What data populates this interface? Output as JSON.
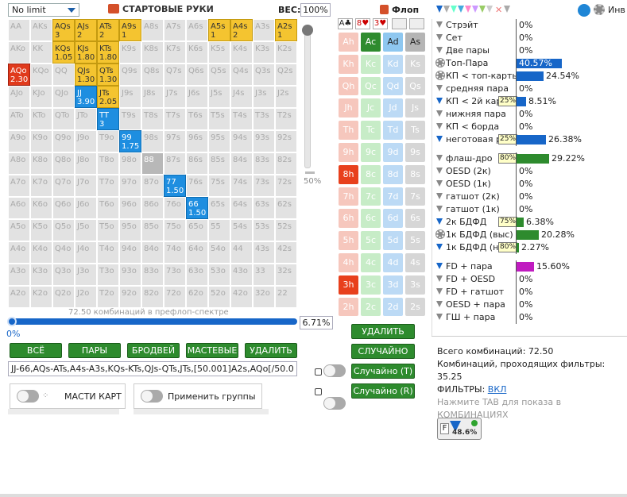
{
  "header": {
    "limit_select": "No limit",
    "hands_title": "СТАРТОВЫЕ РУКИ",
    "weight_label": "ВЕС:",
    "weight_value": "100%"
  },
  "grid": {
    "cells": [
      [
        "AA",
        "AKs",
        "AQs\n3",
        "AJs\n2",
        "ATs\n2",
        "A9s\n1",
        "A8s",
        "A7s",
        "A6s",
        "A5s\n1",
        "A4s\n2",
        "A3s",
        "A2s\n1"
      ],
      [
        "AKo",
        "KK",
        "KQs\n1.05",
        "KJs\n1.80",
        "KTs\n1.80",
        "K9s",
        "K8s",
        "K7s",
        "K6s",
        "K5s",
        "K4s",
        "K3s",
        "K2s"
      ],
      [
        "AQo\n2.30",
        "KQo",
        "QQ",
        "QJs\n1.30",
        "QTs\n1.30",
        "Q9s",
        "Q8s",
        "Q7s",
        "Q6s",
        "Q5s",
        "Q4s",
        "Q3s",
        "Q2s"
      ],
      [
        "AJo",
        "KJo",
        "QJo",
        "JJ\n3.90",
        "JTs\n2.05",
        "J9s",
        "J8s",
        "J7s",
        "J6s",
        "J5s",
        "J4s",
        "J3s",
        "J2s"
      ],
      [
        "ATo",
        "KTo",
        "QTo",
        "JTo",
        "TT\n3",
        "T9s",
        "T8s",
        "T7s",
        "T6s",
        "T5s",
        "T4s",
        "T3s",
        "T2s"
      ],
      [
        "A9o",
        "K9o",
        "Q9o",
        "J9o",
        "T9o",
        "99\n1.75",
        "98s",
        "97s",
        "96s",
        "95s",
        "94s",
        "93s",
        "92s"
      ],
      [
        "A8o",
        "K8o",
        "Q8o",
        "J8o",
        "T8o",
        "98o",
        "88",
        "87s",
        "86s",
        "85s",
        "84s",
        "83s",
        "82s"
      ],
      [
        "A7o",
        "K7o",
        "Q7o",
        "J7o",
        "T7o",
        "97o",
        "87o",
        "77\n1.50",
        "76s",
        "75s",
        "74s",
        "73s",
        "72s"
      ],
      [
        "A6o",
        "K6o",
        "Q6o",
        "J6o",
        "T6o",
        "96o",
        "86o",
        "76o",
        "66\n1.50",
        "65s",
        "64s",
        "63s",
        "62s"
      ],
      [
        "A5o",
        "K5o",
        "Q5o",
        "J5o",
        "T5o",
        "95o",
        "85o",
        "75o",
        "65o",
        "55",
        "54s",
        "53s",
        "52s"
      ],
      [
        "A4o",
        "K4o",
        "Q4o",
        "J4o",
        "T4o",
        "94o",
        "84o",
        "74o",
        "64o",
        "54o",
        "44",
        "43s",
        "42s"
      ],
      [
        "A3o",
        "K3o",
        "Q3o",
        "J3o",
        "T3o",
        "93o",
        "83o",
        "73o",
        "63o",
        "53o",
        "43o",
        "33",
        "32s"
      ],
      [
        "A2o",
        "K2o",
        "Q2o",
        "J2o",
        "T2o",
        "92o",
        "82o",
        "72o",
        "62o",
        "52o",
        "42o",
        "32o",
        "22"
      ]
    ],
    "colors": [
      [
        "",
        "",
        "y",
        "y",
        "y",
        "y",
        "",
        "",
        "",
        "y",
        "y",
        "",
        "y"
      ],
      [
        "",
        "",
        "y",
        "y",
        "y",
        "",
        "",
        "",
        "",
        "",
        "",
        "",
        ""
      ],
      [
        "r",
        "",
        "",
        "y",
        "y",
        "",
        "",
        "",
        "",
        "",
        "",
        "",
        ""
      ],
      [
        "",
        "",
        "",
        "b",
        "y",
        "",
        "",
        "",
        "",
        "",
        "",
        "",
        ""
      ],
      [
        "",
        "",
        "",
        "",
        "b",
        "",
        "",
        "",
        "",
        "",
        "",
        "",
        ""
      ],
      [
        "",
        "",
        "",
        "",
        "",
        "b",
        "",
        "",
        "",
        "",
        "",
        "",
        ""
      ],
      [
        "",
        "",
        "",
        "",
        "",
        "",
        "g",
        "",
        "",
        "",
        "",
        "",
        ""
      ],
      [
        "",
        "",
        "",
        "",
        "",
        "",
        "",
        "b",
        "",
        "",
        "",
        "",
        ""
      ],
      [
        "",
        "",
        "",
        "",
        "",
        "",
        "",
        "",
        "b",
        "",
        "",
        "",
        ""
      ],
      [
        "",
        "",
        "",
        "",
        "",
        "",
        "",
        "",
        "",
        "",
        "",
        "",
        ""
      ],
      [
        "",
        "",
        "",
        "",
        "",
        "",
        "",
        "",
        "",
        "",
        "",
        "",
        ""
      ],
      [
        "",
        "",
        "",
        "",
        "",
        "",
        "",
        "",
        "",
        "",
        "",
        "",
        ""
      ],
      [
        "",
        "",
        "",
        "",
        "",
        "",
        "",
        "",
        "",
        "",
        "",
        "",
        ""
      ]
    ]
  },
  "slider": {
    "vertical_pct": "50%",
    "spectrum_text": "72.50 комбинаций в префлоп-спектре",
    "horizontal_pct": "6.71%",
    "zero": "0%"
  },
  "buttons": {
    "all": "ВСЁ",
    "pairs": "ПАРЫ",
    "broadway": "БРОДВЕЙ",
    "suited": "МАСТЕВЫЕ",
    "delete": "УДАЛИТЬ"
  },
  "range_text": "JJ-66,AQs-ATs,A4s-A3s,KQs-KTs,QJs-QTs,JTs,[50.001]A2s,AQo[/50.0",
  "options": {
    "suits": "МАСТИ КАРТ",
    "groups": "Применить группы"
  },
  "flop": {
    "title": "Флоп",
    "slots": [
      "A♣",
      "8♥",
      "3♥",
      "",
      ""
    ],
    "ranks": [
      "A",
      "K",
      "Q",
      "J",
      "T",
      "9",
      "8",
      "7",
      "6",
      "5",
      "4",
      "3",
      "2"
    ],
    "suits": [
      "h",
      "c",
      "d",
      "s"
    ]
  },
  "board_buttons": {
    "delete": "УДАЛИТЬ",
    "random": "СЛУЧАЙНО",
    "random_t": "Случайно (T)",
    "random_r": "Случайно (R)"
  },
  "filters": {
    "top_label": "Инв",
    "rows": [
      {
        "icon": "funnel",
        "label": "Стрэйт",
        "value": "0%"
      },
      {
        "icon": "funnel",
        "label": "Сет",
        "value": "0%"
      },
      {
        "icon": "funnel",
        "label": "Две пары",
        "value": "0%"
      },
      {
        "icon": "gear",
        "label": "Топ-Пара",
        "value": "40.57%",
        "bar": 0.4057,
        "color": "#1766c8",
        "inbar": true
      },
      {
        "icon": "gear",
        "label": "КП < топ-карты",
        "value": "24.54%",
        "bar": 0.2454,
        "color": "#1766c8"
      },
      {
        "icon": "funnel",
        "label": "средняя пара",
        "value": "0%"
      },
      {
        "icon": "funnel-blue",
        "label": "КП < 2й карты",
        "tag": "25%",
        "value": "8.51%",
        "bar": 0.0851,
        "color": "#1766c8"
      },
      {
        "icon": "funnel",
        "label": "нижняя пара",
        "value": "0%"
      },
      {
        "icon": "funnel",
        "label": "КП < борда",
        "value": "0%"
      },
      {
        "icon": "funnel-blue",
        "label": "неготовая рука",
        "tag": "25%",
        "value": "26.38%",
        "bar": 0.2638,
        "color": "#1766c8"
      },
      {
        "gap": true
      },
      {
        "icon": "funnel",
        "label": "флаш-дро",
        "tag": "80%",
        "value": "29.22%",
        "bar": 0.2922,
        "color": "#2e8b2e"
      },
      {
        "icon": "funnel",
        "label": "OESD (2к)",
        "value": "0%"
      },
      {
        "icon": "funnel",
        "label": "OESD (1к)",
        "value": "0%"
      },
      {
        "icon": "funnel",
        "label": "гатшот (2к)",
        "value": "0%"
      },
      {
        "icon": "funnel",
        "label": "гатшот (1к)",
        "value": "0%"
      },
      {
        "icon": "funnel-blue",
        "label": "2к БДФД",
        "tag": "75%",
        "value": "6.38%",
        "bar": 0.0638,
        "color": "#2e8b2e"
      },
      {
        "icon": "gear",
        "label": "1к БДФД (выс)",
        "value": "20.28%",
        "bar": 0.2028,
        "color": "#2e8b2e"
      },
      {
        "icon": "funnel-blue",
        "label": "1к БДФД (низ)",
        "tag": "80%",
        "value": "2.27%",
        "bar": 0.0227,
        "color": "#2e8b2e"
      },
      {
        "gap": true
      },
      {
        "icon": "funnel-blue",
        "label": "FD + пара",
        "value": "15.60%",
        "bar": 0.156,
        "color": "#c01cc0"
      },
      {
        "icon": "funnel",
        "label": "FD + OESD",
        "value": "0%"
      },
      {
        "icon": "funnel",
        "label": "FD + гатшот",
        "value": "0%"
      },
      {
        "icon": "funnel",
        "label": "OESD + пара",
        "value": "0%"
      },
      {
        "icon": "funnel",
        "label": "ГШ + пара",
        "value": "0%"
      }
    ]
  },
  "summary": {
    "total": "Всего комбинаций: 72.50",
    "passed": "Комбинаций, проходящих фильтры: 35.25",
    "filters_label": "ФИЛЬТРЫ:",
    "filters_state": "ВКЛ",
    "hint": "Нажмите TAB для показа в КОМБИНАЦИЯХ"
  },
  "filter_badge": {
    "letter": "F",
    "pct": "48.6%"
  }
}
